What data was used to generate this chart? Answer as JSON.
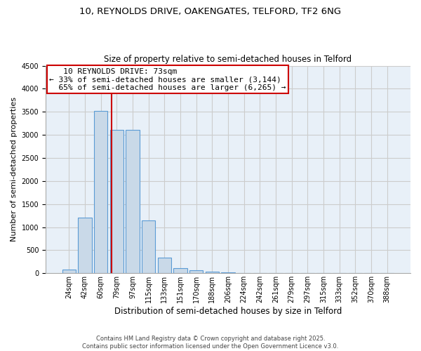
{
  "title_line1": "10, REYNOLDS DRIVE, OAKENGATES, TELFORD, TF2 6NG",
  "title_line2": "Size of property relative to semi-detached houses in Telford",
  "xlabel": "Distribution of semi-detached houses by size in Telford",
  "ylabel": "Number of semi-detached properties",
  "categories": [
    "24sqm",
    "42sqm",
    "60sqm",
    "79sqm",
    "97sqm",
    "115sqm",
    "133sqm",
    "151sqm",
    "170sqm",
    "188sqm",
    "206sqm",
    "224sqm",
    "242sqm",
    "261sqm",
    "279sqm",
    "297sqm",
    "315sqm",
    "333sqm",
    "352sqm",
    "370sqm",
    "388sqm"
  ],
  "values": [
    75,
    1210,
    3520,
    3110,
    3110,
    1150,
    340,
    105,
    65,
    35,
    20,
    10,
    5,
    3,
    2,
    1,
    1,
    0,
    0,
    0,
    0
  ],
  "bar_color": "#c9d9e8",
  "bar_edge_color": "#5b9bd5",
  "annotation_line1": "   10 REYNOLDS DRIVE: 73sqm",
  "annotation_line2": "← 33% of semi-detached houses are smaller (3,144)",
  "annotation_line3": "  65% of semi-detached houses are larger (6,265) →",
  "annotation_box_color": "#ffffff",
  "annotation_box_edge": "#cc0000",
  "vline_color": "#cc0000",
  "ylim": [
    0,
    4500
  ],
  "yticks": [
    0,
    500,
    1000,
    1500,
    2000,
    2500,
    3000,
    3500,
    4000,
    4500
  ],
  "grid_color": "#cccccc",
  "background_color": "#e8f0f8",
  "footer_text": "Contains HM Land Registry data © Crown copyright and database right 2025.\nContains public sector information licensed under the Open Government Licence v3.0.",
  "title_fontsize": 9.5,
  "subtitle_fontsize": 8.5,
  "xlabel_fontsize": 8.5,
  "ylabel_fontsize": 8,
  "tick_fontsize": 7,
  "annotation_fontsize": 8,
  "footer_fontsize": 6
}
